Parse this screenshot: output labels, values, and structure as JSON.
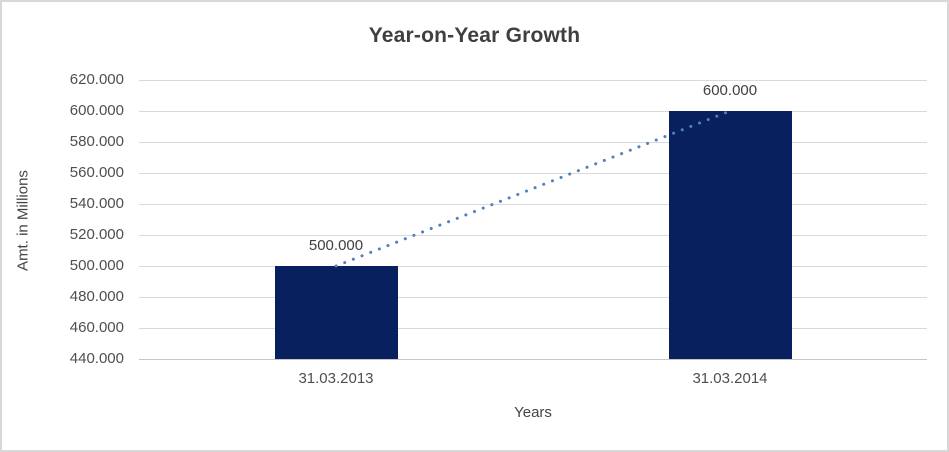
{
  "window": {
    "background": "#ffffff",
    "border_color": "#d8d8d8"
  },
  "chart_data": {
    "type": "bar",
    "title": "Year-on-Year Growth",
    "xlabel": "Years",
    "ylabel": "Amt. in Millions",
    "categories": [
      "31.03.2013",
      "31.03.2014"
    ],
    "values": [
      500000,
      600000
    ],
    "value_labels": [
      "500.000",
      "600.000"
    ],
    "ylim": [
      440000,
      620000
    ],
    "ytick_step": 20000,
    "yticks": [
      {
        "value": 620000,
        "label": "620.000"
      },
      {
        "value": 600000,
        "label": "600.000"
      },
      {
        "value": 580000,
        "label": "580.000"
      },
      {
        "value": 560000,
        "label": "560.000"
      },
      {
        "value": 540000,
        "label": "540.000"
      },
      {
        "value": 520000,
        "label": "520.000"
      },
      {
        "value": 500000,
        "label": "500.000"
      },
      {
        "value": 480000,
        "label": "480.000"
      },
      {
        "value": 460000,
        "label": "460.000"
      },
      {
        "value": 440000,
        "label": "440.000"
      }
    ],
    "grid": true,
    "legend": "none",
    "trendline": {
      "type": "linear",
      "style": "dotted",
      "from_value": 500000,
      "to_value": 600000
    },
    "colors": {
      "bar": "#08215e",
      "trendline": "#4e81bd",
      "gridline": "#d9d9d9",
      "axis_line": "#c6c6c6",
      "title_text": "#3f3f3f",
      "axis_text": "#4f4f4f"
    }
  }
}
